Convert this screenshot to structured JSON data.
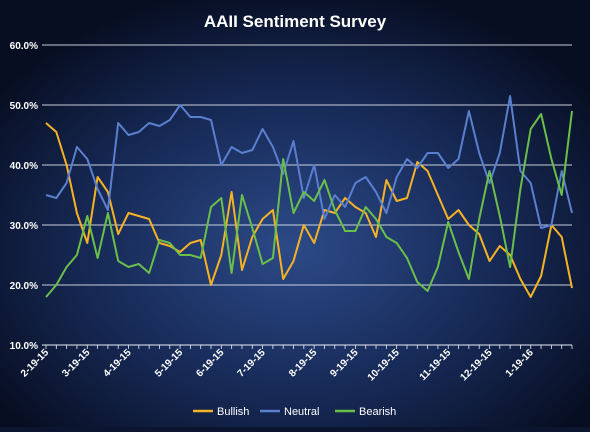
{
  "chart_data": {
    "type": "line",
    "title": "AAII Sentiment Survey",
    "xlabel": "",
    "ylabel": "",
    "ylim": [
      0.1,
      0.6
    ],
    "y_ticks": [
      "10.0%",
      "20.0%",
      "30.0%",
      "40.0%",
      "50.0%",
      "60.0%"
    ],
    "y_tick_values": [
      0.1,
      0.2,
      0.3,
      0.4,
      0.5,
      0.6
    ],
    "x_tick_labels": [
      "2-19-15",
      "3-19-15",
      "4-19-15",
      "5-19-15",
      "6-19-15",
      "7-19-15",
      "8-19-15",
      "9-19-15",
      "10-19-15",
      "11-19-15",
      "12-19-15",
      "1-19-16"
    ],
    "x_tick_week_index": [
      0,
      4,
      8,
      13,
      17,
      21,
      26,
      30,
      34,
      39,
      43,
      47
    ],
    "grid": true,
    "legend_position": "bottom",
    "series": [
      {
        "name": "Bullish",
        "color": "#f5b324",
        "values": [
          0.47,
          0.455,
          0.4,
          0.32,
          0.27,
          0.38,
          0.355,
          0.285,
          0.32,
          0.315,
          0.31,
          0.27,
          0.265,
          0.255,
          0.27,
          0.275,
          0.2,
          0.25,
          0.355,
          0.225,
          0.28,
          0.31,
          0.325,
          0.21,
          0.24,
          0.3,
          0.27,
          0.325,
          0.32,
          0.345,
          0.33,
          0.32,
          0.28,
          0.375,
          0.34,
          0.345,
          0.405,
          0.39,
          0.35,
          0.31,
          0.325,
          0.3,
          0.285,
          0.24,
          0.265,
          0.25,
          0.21,
          0.18,
          0.215,
          0.3,
          0.28,
          0.195
        ]
      },
      {
        "name": "Neutral",
        "color": "#5b7fcf",
        "values": [
          0.35,
          0.345,
          0.37,
          0.43,
          0.41,
          0.36,
          0.325,
          0.47,
          0.45,
          0.455,
          0.47,
          0.465,
          0.475,
          0.5,
          0.48,
          0.48,
          0.475,
          0.4,
          0.43,
          0.42,
          0.425,
          0.46,
          0.43,
          0.385,
          0.44,
          0.345,
          0.4,
          0.31,
          0.35,
          0.33,
          0.37,
          0.38,
          0.355,
          0.32,
          0.38,
          0.41,
          0.395,
          0.42,
          0.42,
          0.395,
          0.41,
          0.49,
          0.42,
          0.37,
          0.42,
          0.515,
          0.39,
          0.37,
          0.295,
          0.3,
          0.39,
          0.32
        ]
      },
      {
        "name": "Bearish",
        "color": "#6abf4b",
        "values": [
          0.18,
          0.2,
          0.23,
          0.25,
          0.315,
          0.245,
          0.32,
          0.24,
          0.23,
          0.235,
          0.22,
          0.275,
          0.27,
          0.25,
          0.25,
          0.245,
          0.33,
          0.345,
          0.22,
          0.35,
          0.295,
          0.235,
          0.245,
          0.41,
          0.32,
          0.355,
          0.34,
          0.375,
          0.325,
          0.29,
          0.29,
          0.33,
          0.31,
          0.28,
          0.27,
          0.245,
          0.205,
          0.19,
          0.23,
          0.305,
          0.255,
          0.21,
          0.31,
          0.39,
          0.315,
          0.23,
          0.36,
          0.46,
          0.485,
          0.41,
          0.35,
          0.49
        ]
      }
    ]
  }
}
